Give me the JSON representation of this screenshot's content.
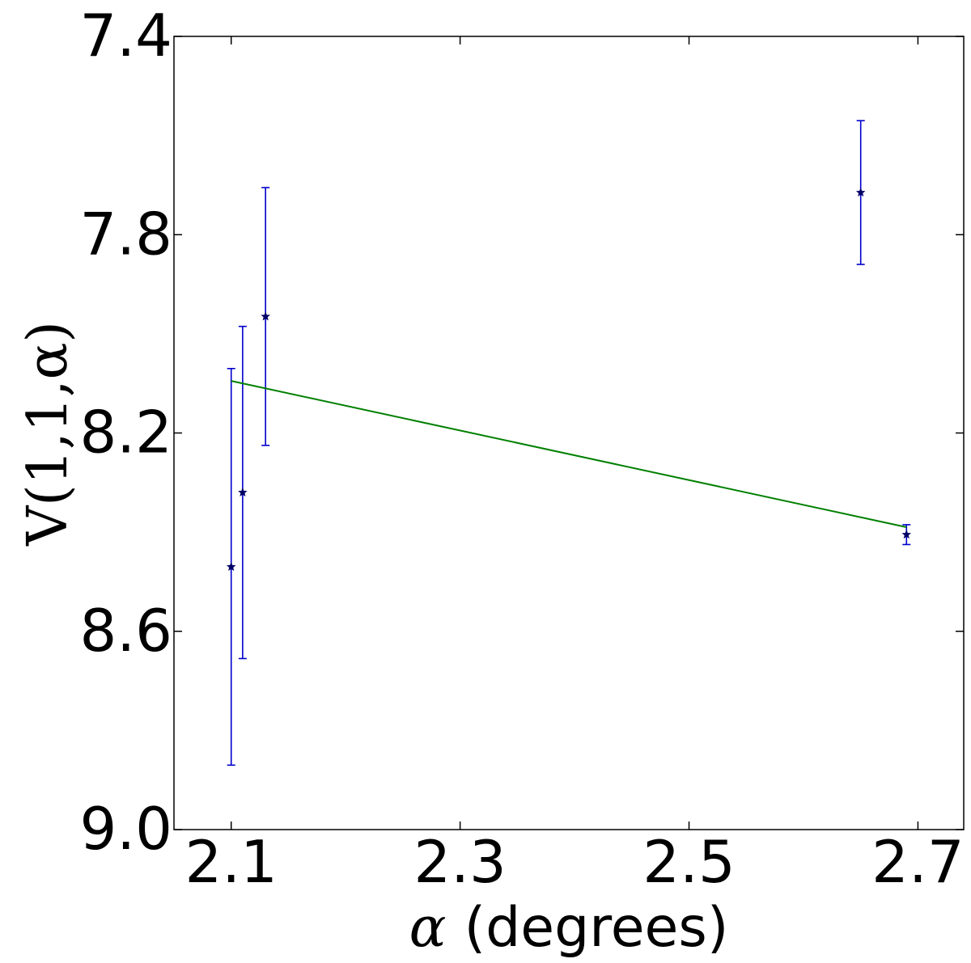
{
  "chart_data": {
    "type": "scatter",
    "xlabel_symbol": "α",
    "xlabel_text": "(degrees)",
    "ylabel": "V(1,1,α)",
    "xlim": [
      2.05,
      2.74
    ],
    "ylim": [
      9.0,
      7.4
    ],
    "y_inverted": true,
    "x_ticks": [
      2.1,
      2.3,
      2.5,
      2.7
    ],
    "x_tick_labels": [
      "2.1",
      "2.3",
      "2.5",
      "2.7"
    ],
    "y_ticks": [
      7.4,
      7.8,
      8.2,
      8.6,
      9.0
    ],
    "y_tick_labels": [
      "7.4",
      "7.8",
      "8.2",
      "8.6",
      "9.0"
    ],
    "grid": false,
    "legend": "none",
    "series": [
      {
        "kind": "errorbar",
        "marker": "star",
        "color": "#0000cc",
        "marker_color": "#000066",
        "points": [
          {
            "x": 2.1,
            "y": 8.47,
            "err": 0.4
          },
          {
            "x": 2.11,
            "y": 8.32,
            "err": 0.335
          },
          {
            "x": 2.13,
            "y": 7.965,
            "err": 0.26
          },
          {
            "x": 2.65,
            "y": 7.715,
            "err": 0.145
          },
          {
            "x": 2.69,
            "y": 8.405,
            "err": 0.02
          }
        ]
      },
      {
        "kind": "line",
        "color": "#008000",
        "x": [
          2.1,
          2.69
        ],
        "y": [
          8.095,
          8.39
        ]
      }
    ]
  }
}
